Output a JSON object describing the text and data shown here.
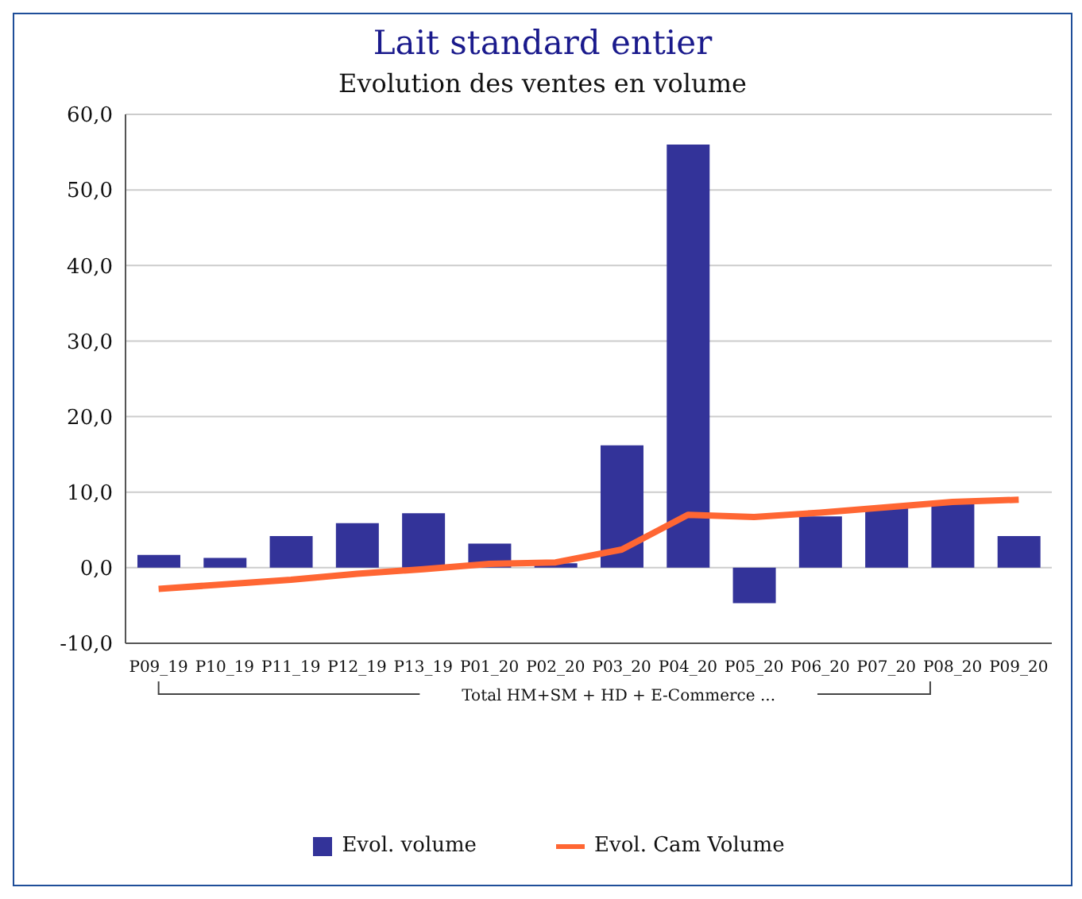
{
  "chart_data": {
    "type": "bar",
    "title": "Lait standard entier",
    "subtitle": "Evolution des ventes en volume",
    "xlabel": "Total HM+SM + HD + E-Commerce ...",
    "categories": [
      "P09_19",
      "P10_19",
      "P11_19",
      "P12_19",
      "P13_19",
      "P01_20",
      "P02_20",
      "P03_20",
      "P04_20",
      "P05_20",
      "P06_20",
      "P07_20",
      "P08_20",
      "P09_20"
    ],
    "series": [
      {
        "name": "Evol. volume",
        "color": "#333399",
        "values": [
          1.7,
          1.3,
          4.2,
          5.9,
          7.2,
          3.2,
          0.6,
          16.2,
          56.0,
          -4.7,
          6.8,
          7.9,
          8.8,
          4.2
        ]
      },
      {
        "name": "Evol. Cam Volume",
        "type": "line",
        "color": "#ff6633",
        "values": [
          -2.8,
          -2.2,
          -1.6,
          -0.8,
          -0.2,
          0.5,
          0.7,
          2.4,
          7.0,
          6.7,
          7.3,
          8.0,
          8.7,
          9.0
        ]
      }
    ],
    "ylim": [
      -10,
      60
    ],
    "yticks": [
      {
        "value": -10,
        "label": "-10,0"
      },
      {
        "value": 0,
        "label": "0,0"
      },
      {
        "value": 10,
        "label": "10,0"
      },
      {
        "value": 20,
        "label": "20,0"
      },
      {
        "value": 30,
        "label": "30,0"
      },
      {
        "value": 40,
        "label": "40,0"
      },
      {
        "value": 50,
        "label": "50,0"
      },
      {
        "value": 60,
        "label": "60,0"
      }
    ],
    "grid": "y",
    "legend": "bottom",
    "marker": "none",
    "line_style": "solid"
  }
}
